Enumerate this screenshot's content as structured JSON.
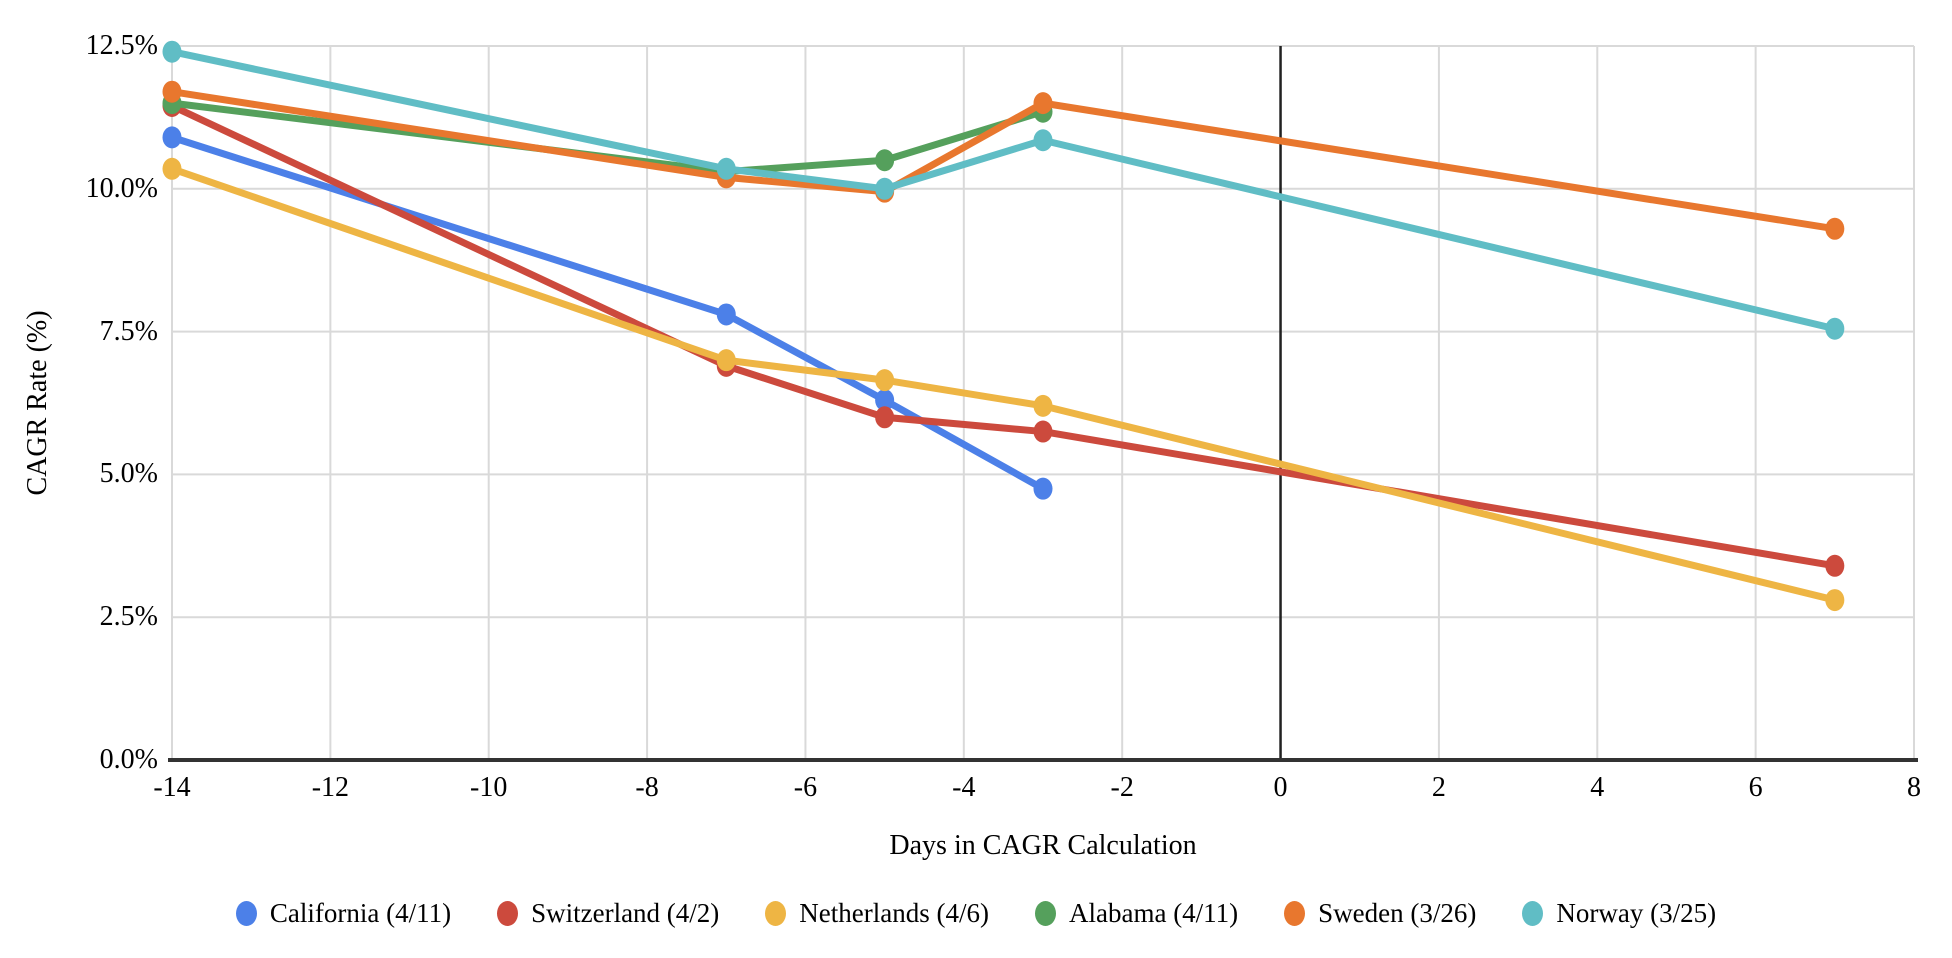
{
  "chart_data": {
    "type": "line",
    "title": "",
    "xlabel": "Days in CAGR Calculation",
    "ylabel": "CAGR Rate (%)",
    "xlim": [
      -14,
      8
    ],
    "ylim": [
      0,
      12.5
    ],
    "x_ticks": [
      -14,
      -12,
      -10,
      -8,
      -6,
      -4,
      -2,
      0,
      2,
      4,
      6,
      8
    ],
    "y_ticks": [
      {
        "value": 0,
        "label": "0.0%"
      },
      {
        "value": 2.5,
        "label": "2.5%"
      },
      {
        "value": 5,
        "label": "5.0%"
      },
      {
        "value": 7.5,
        "label": "7.5%"
      },
      {
        "value": 10,
        "label": "10.0%"
      },
      {
        "value": 12.5,
        "label": "12.5%"
      }
    ],
    "grid": true,
    "legend_position": "bottom",
    "baseline_x": 0,
    "grid_color": "#d9d9d9",
    "axis_color": "#333333",
    "baseline_color": "#212121",
    "series": [
      {
        "name": "California (4/11)",
        "color": "#4C80E8",
        "points": [
          [
            -14,
            10.9
          ],
          [
            -7,
            7.8
          ],
          [
            -5,
            6.3
          ],
          [
            -3,
            4.75
          ]
        ]
      },
      {
        "name": "Switzerland (4/2)",
        "color": "#CC4A3D",
        "points": [
          [
            -14,
            11.45
          ],
          [
            -7,
            6.9
          ],
          [
            -5,
            6.0
          ],
          [
            -3,
            5.75
          ],
          [
            7,
            3.4
          ]
        ]
      },
      {
        "name": "Netherlands (4/6)",
        "color": "#EEB544",
        "points": [
          [
            -14,
            10.35
          ],
          [
            -7,
            7.0
          ],
          [
            -5,
            6.65
          ],
          [
            -3,
            6.2
          ],
          [
            7,
            2.8
          ]
        ]
      },
      {
        "name": "Alabama (4/11)",
        "color": "#55A05C",
        "points": [
          [
            -14,
            11.5
          ],
          [
            -7,
            10.3
          ],
          [
            -5,
            10.5
          ],
          [
            -3,
            11.35
          ]
        ]
      },
      {
        "name": "Sweden (3/26)",
        "color": "#E8772E",
        "points": [
          [
            -14,
            11.7
          ],
          [
            -7,
            10.2
          ],
          [
            -5,
            9.95
          ],
          [
            -3,
            11.5
          ],
          [
            7,
            9.3
          ]
        ]
      },
      {
        "name": "Norway (3/25)",
        "color": "#60BDC5",
        "points": [
          [
            -14,
            12.4
          ],
          [
            -7,
            10.35
          ],
          [
            -5,
            10.0
          ],
          [
            -3,
            10.85
          ],
          [
            7,
            7.55
          ]
        ]
      }
    ]
  }
}
